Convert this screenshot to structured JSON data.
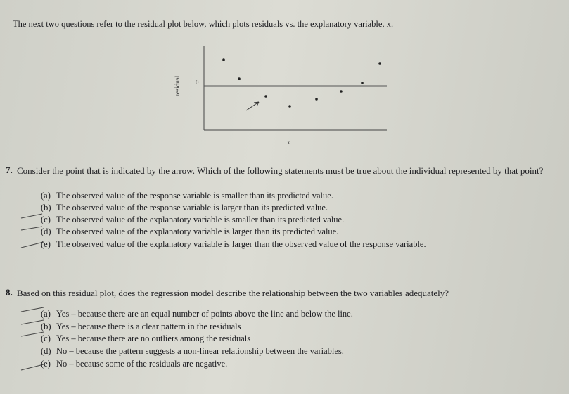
{
  "intro": "The next two questions refer to the residual plot below, which plots residuals vs. the explanatory variable, x.",
  "figure": {
    "y_label": "residual",
    "zero_label": "0",
    "x_label": "x"
  },
  "questions": [
    {
      "number": "7.",
      "text": "Consider the point that is indicated by the arrow. Which of the following statements must be true about the individual represented by that point?",
      "options": [
        {
          "label": "(a)",
          "text": "The observed value of the response variable is smaller than its predicted value."
        },
        {
          "label": "(b)",
          "text": "The observed value of the response variable is larger than its predicted value."
        },
        {
          "label": "(c)",
          "text": "The observed value of the explanatory variable is smaller than its predicted value."
        },
        {
          "label": "(d)",
          "text": "The observed value of the explanatory variable is larger than its predicted value."
        },
        {
          "label": "(e)",
          "text": "The observed value of the explanatory variable is larger than the observed value of the response variable."
        }
      ]
    },
    {
      "number": "8.",
      "text": "Based on this residual plot, does the regression model describe the relationship between the two variables adequately?",
      "options": [
        {
          "label": "(a)",
          "text": "Yes – because there are an equal number of points above the line and below the line."
        },
        {
          "label": "(b)",
          "text": "Yes – because there is a clear pattern in the residuals"
        },
        {
          "label": "(c)",
          "text": "Yes – because there are no outliers among the residuals"
        },
        {
          "label": "(d)",
          "text": "No – because the pattern suggests a non-linear relationship between the variables."
        },
        {
          "label": "(e)",
          "text": "No – because some of the residuals are negative."
        }
      ]
    }
  ]
}
